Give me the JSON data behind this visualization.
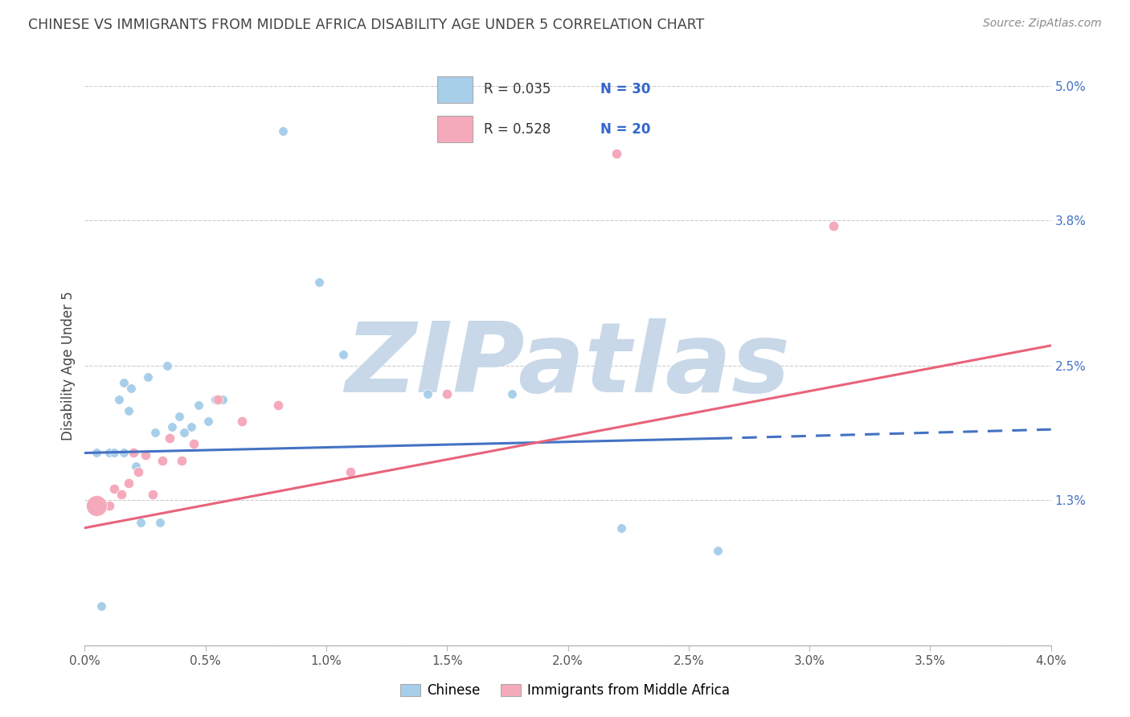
{
  "title": "CHINESE VS IMMIGRANTS FROM MIDDLE AFRICA DISABILITY AGE UNDER 5 CORRELATION CHART",
  "source": "Source: ZipAtlas.com",
  "ylabel": "Disability Age Under 5",
  "xlim": [
    0.0,
    4.0
  ],
  "ylim": [
    0.0,
    5.0
  ],
  "x_tick_values": [
    0.0,
    0.5,
    1.0,
    1.5,
    2.0,
    2.5,
    3.0,
    3.5,
    4.0
  ],
  "x_tick_labels": [
    "0.0%",
    "0.5%",
    "1.0%",
    "1.5%",
    "2.0%",
    "2.5%",
    "3.0%",
    "3.5%",
    "4.0%"
  ],
  "right_y_positions": [
    0.0,
    1.3,
    2.5,
    3.8,
    5.0
  ],
  "right_y_labels": [
    "",
    "1.3%",
    "2.5%",
    "3.8%",
    "5.0%"
  ],
  "legend_blue_r": "R = 0.035",
  "legend_blue_n": "N = 30",
  "legend_pink_r": "R = 0.528",
  "legend_pink_n": "N = 20",
  "bottom_label_blue": "Chinese",
  "bottom_label_pink": "Immigrants from Middle Africa",
  "blue_fill_color": "#A8CFEA",
  "pink_fill_color": "#F5AABB",
  "blue_line_color": "#4472C4",
  "pink_line_color": "#E8637A",
  "grid_color": "#CCCCCC",
  "title_color": "#444444",
  "source_color": "#888888",
  "watermark_text": "ZIPatlas",
  "watermark_color": "#C8D8E8",
  "chinese_x": [
    0.05,
    0.1,
    0.12,
    0.14,
    0.16,
    0.16,
    0.18,
    0.19,
    0.21,
    0.23,
    0.26,
    0.29,
    0.31,
    0.34,
    0.36,
    0.39,
    0.41,
    0.44,
    0.47,
    0.51,
    0.54,
    0.57,
    0.82,
    0.97,
    1.07,
    1.42,
    1.77,
    2.22,
    2.62,
    0.07
  ],
  "chinese_y": [
    1.72,
    1.72,
    1.72,
    2.2,
    2.35,
    1.72,
    2.1,
    2.3,
    1.6,
    1.1,
    2.4,
    1.9,
    1.1,
    2.5,
    1.95,
    2.05,
    1.9,
    1.95,
    2.15,
    2.0,
    2.2,
    2.2,
    4.6,
    3.25,
    2.6,
    2.25,
    2.25,
    1.05,
    0.85,
    0.35
  ],
  "pink_x": [
    0.05,
    0.1,
    0.12,
    0.15,
    0.18,
    0.2,
    0.22,
    0.25,
    0.28,
    0.32,
    0.35,
    0.4,
    0.45,
    0.55,
    0.65,
    0.8,
    1.1,
    1.5,
    2.2,
    3.1
  ],
  "pink_y": [
    1.3,
    1.25,
    1.4,
    1.35,
    1.45,
    1.72,
    1.55,
    1.7,
    1.35,
    1.65,
    1.85,
    1.65,
    1.8,
    2.2,
    2.0,
    2.15,
    1.55,
    2.25,
    4.4,
    3.75
  ],
  "pink_large_x": 0.05,
  "pink_large_y": 1.25,
  "blue_trend_x1": 0.0,
  "blue_trend_y1": 1.72,
  "blue_trend_x2": 2.62,
  "blue_trend_y2": 1.85,
  "blue_dash_x1": 2.62,
  "blue_dash_y1": 1.85,
  "blue_dash_x2": 4.0,
  "blue_dash_y2": 1.93,
  "pink_trend_x1": 0.0,
  "pink_trend_y1": 1.05,
  "pink_trend_x2": 4.0,
  "pink_trend_y2": 2.68,
  "dot_size_chinese": 70,
  "dot_size_pink": 80,
  "dot_size_pink_large": 350
}
